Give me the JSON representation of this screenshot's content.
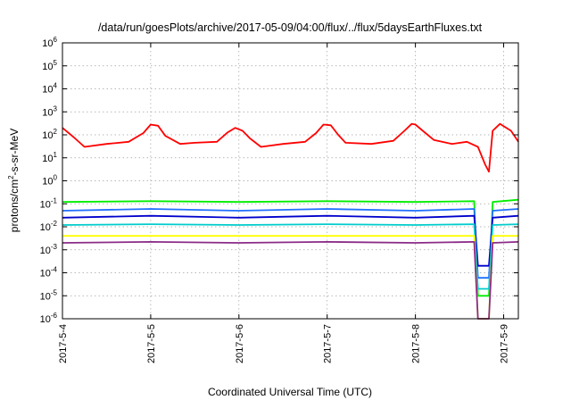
{
  "chart_data": {
    "type": "line",
    "title": "/data/run/goesPlots/archive/2017-05-09/04:00/flux/../flux/5daysEarthFluxes.txt",
    "xlabel": "Coordinated Universal Time (UTC)",
    "ylabel": {
      "base": "protons/cm",
      "sup": "2",
      "rest": "-s-sr-MeV"
    },
    "yscale": "log",
    "ylim": [
      1e-06,
      1000000.0
    ],
    "xlim": [
      "2017-05-04T00:00",
      "2017-05-09T04:00"
    ],
    "grid": true,
    "legend": "none",
    "x_ticks": [
      {
        "label": "2017-5-4",
        "t": "2017-05-04T00:00"
      },
      {
        "label": "2017-5-5",
        "t": "2017-05-05T00:00"
      },
      {
        "label": "2017-5-6",
        "t": "2017-05-06T00:00"
      },
      {
        "label": "2017-5-7",
        "t": "2017-05-07T00:00"
      },
      {
        "label": "2017-5-8",
        "t": "2017-05-08T00:00"
      },
      {
        "label": "2017-5-9",
        "t": "2017-05-09T00:00"
      }
    ],
    "y_ticks": [
      {
        "base": "10",
        "exp": "6",
        "value": 1000000.0
      },
      {
        "base": "10",
        "exp": "5",
        "value": 100000.0
      },
      {
        "base": "10",
        "exp": "4",
        "value": 10000.0
      },
      {
        "base": "10",
        "exp": "3",
        "value": 1000.0
      },
      {
        "base": "10",
        "exp": "2",
        "value": 100.0
      },
      {
        "base": "10",
        "exp": "1",
        "value": 10.0
      },
      {
        "base": "10",
        "exp": "0",
        "value": 1.0
      },
      {
        "base": "10",
        "exp": "-1",
        "value": 0.1
      },
      {
        "base": "10",
        "exp": "-2",
        "value": 0.01
      },
      {
        "base": "10",
        "exp": "-3",
        "value": 0.001
      },
      {
        "base": "10",
        "exp": "-4",
        "value": 0.0001
      },
      {
        "base": "10",
        "exp": "-5",
        "value": 1e-05
      },
      {
        "base": "10",
        "exp": "-6",
        "value": 1e-06
      }
    ],
    "series": [
      {
        "color": "#ff0000",
        "x": [
          "2017-05-04T00:00",
          "2017-05-04T03:00",
          "2017-05-04T06:00",
          "2017-05-04T12:00",
          "2017-05-04T18:00",
          "2017-05-04T22:00",
          "2017-05-05T00:00",
          "2017-05-05T02:00",
          "2017-05-05T04:00",
          "2017-05-05T08:00",
          "2017-05-05T12:00",
          "2017-05-05T18:00",
          "2017-05-05T21:00",
          "2017-05-05T23:00",
          "2017-05-06T01:00",
          "2017-05-06T03:00",
          "2017-05-06T06:00",
          "2017-05-06T12:00",
          "2017-05-06T18:00",
          "2017-05-06T21:00",
          "2017-05-06T23:00",
          "2017-05-07T01:00",
          "2017-05-07T03:00",
          "2017-05-07T05:00",
          "2017-05-07T12:00",
          "2017-05-07T18:00",
          "2017-05-07T21:00",
          "2017-05-07T23:00",
          "2017-05-08T00:00",
          "2017-05-08T02:00",
          "2017-05-08T05:00",
          "2017-05-08T10:00",
          "2017-05-08T14:00",
          "2017-05-08T17:00",
          "2017-05-08T19:00",
          "2017-05-08T20:00",
          "2017-05-08T21:00",
          "2017-05-08T23:00",
          "2017-05-09T02:00",
          "2017-05-09T04:00"
        ],
        "y": [
          200,
          80,
          30,
          40,
          50,
          120,
          280,
          250,
          90,
          40,
          45,
          50,
          130,
          200,
          150,
          70,
          30,
          40,
          50,
          120,
          280,
          260,
          100,
          45,
          40,
          55,
          150,
          300,
          280,
          150,
          60,
          40,
          50,
          30,
          5,
          2.5,
          150,
          300,
          150,
          50
        ]
      },
      {
        "color": "#00ee00",
        "x": [
          "2017-05-04T00:00",
          "2017-05-05T00:00",
          "2017-05-06T00:00",
          "2017-05-07T00:00",
          "2017-05-08T00:00",
          "2017-05-08T16:00",
          "2017-05-08T17:00",
          "2017-05-08T20:00",
          "2017-05-08T21:00",
          "2017-05-09T04:00"
        ],
        "y": [
          0.12,
          0.13,
          0.12,
          0.13,
          0.12,
          0.13,
          1e-05,
          1e-05,
          0.12,
          0.15
        ]
      },
      {
        "color": "#1f6fff",
        "x": [
          "2017-05-04T00:00",
          "2017-05-05T00:00",
          "2017-05-06T00:00",
          "2017-05-07T00:00",
          "2017-05-08T00:00",
          "2017-05-08T16:00",
          "2017-05-08T17:00",
          "2017-05-08T20:00",
          "2017-05-08T21:00",
          "2017-05-09T04:00"
        ],
        "y": [
          0.05,
          0.06,
          0.05,
          0.06,
          0.05,
          0.06,
          6e-05,
          6e-05,
          0.05,
          0.06
        ]
      },
      {
        "color": "#0000cc",
        "x": [
          "2017-05-04T00:00",
          "2017-05-05T00:00",
          "2017-05-06T00:00",
          "2017-05-07T00:00",
          "2017-05-08T00:00",
          "2017-05-08T16:00",
          "2017-05-08T17:00",
          "2017-05-08T20:00",
          "2017-05-08T21:00",
          "2017-05-09T04:00"
        ],
        "y": [
          0.025,
          0.03,
          0.025,
          0.03,
          0.025,
          0.03,
          0.0002,
          0.0002,
          0.025,
          0.03
        ]
      },
      {
        "color": "#00cccc",
        "x": [
          "2017-05-04T00:00",
          "2017-05-05T00:00",
          "2017-05-06T00:00",
          "2017-05-07T00:00",
          "2017-05-08T00:00",
          "2017-05-08T16:00",
          "2017-05-08T17:00",
          "2017-05-08T20:00",
          "2017-05-08T21:00",
          "2017-05-09T04:00"
        ],
        "y": [
          0.012,
          0.013,
          0.012,
          0.013,
          0.012,
          0.013,
          2e-05,
          2e-05,
          0.012,
          0.013
        ]
      },
      {
        "color": "#ffff00",
        "x": [
          "2017-05-04T00:00",
          "2017-05-05T00:00",
          "2017-05-06T00:00",
          "2017-05-07T00:00",
          "2017-05-08T00:00",
          "2017-05-08T16:00",
          "2017-05-08T17:00",
          "2017-05-08T20:00",
          "2017-05-08T21:00",
          "2017-05-09T04:00"
        ],
        "y": [
          0.004,
          0.004,
          0.004,
          0.004,
          0.004,
          0.004,
          1e-06,
          1e-06,
          0.004,
          0.004
        ]
      },
      {
        "color": "#8b2b87",
        "x": [
          "2017-05-04T00:00",
          "2017-05-05T00:00",
          "2017-05-06T00:00",
          "2017-05-07T00:00",
          "2017-05-08T00:00",
          "2017-05-08T16:00",
          "2017-05-08T17:00",
          "2017-05-08T20:00",
          "2017-05-08T21:00",
          "2017-05-09T04:00"
        ],
        "y": [
          0.002,
          0.0022,
          0.002,
          0.0022,
          0.002,
          0.0022,
          1e-06,
          1e-06,
          0.002,
          0.0022
        ]
      }
    ]
  }
}
